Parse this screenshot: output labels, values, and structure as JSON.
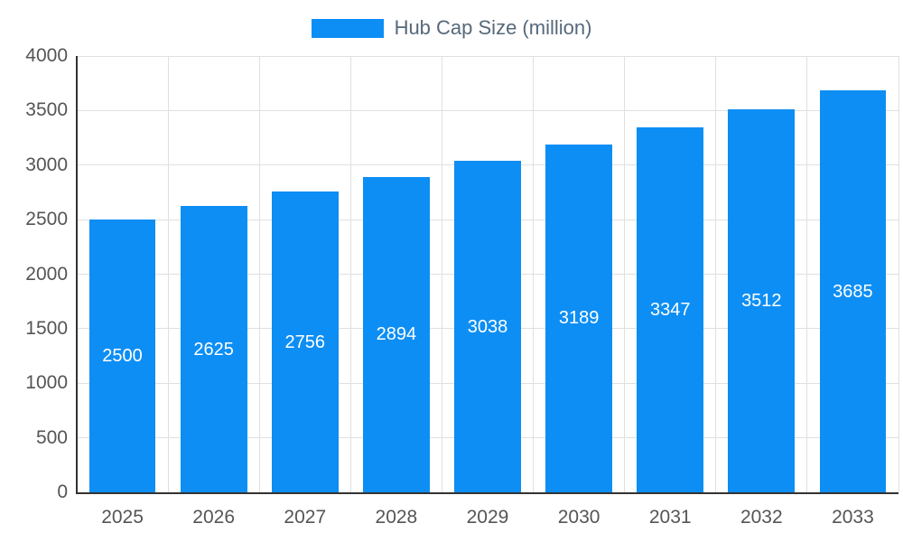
{
  "legend": {
    "label": "Hub Cap Size (million)"
  },
  "chart_data": {
    "type": "bar",
    "title": "Hub Cap Size (million)",
    "categories": [
      "2025",
      "2026",
      "2027",
      "2028",
      "2029",
      "2030",
      "2031",
      "2032",
      "2033"
    ],
    "values": [
      2500,
      2625,
      2756,
      2894,
      3038,
      3189,
      3347,
      3512,
      3685
    ],
    "xlabel": "",
    "ylabel": "",
    "ylim": [
      0,
      4000
    ],
    "yticks": [
      0,
      500,
      1000,
      1500,
      2000,
      2500,
      3000,
      3500,
      4000
    ],
    "legend_position": "top",
    "grid": true
  },
  "colors": {
    "bar": "#0d8ef4",
    "value_label": "#ffffff",
    "axis_text": "#555555",
    "gridline": "#e0e0e0",
    "axis_line": "#333333",
    "legend_text": "#56697a",
    "background": "#ffffff"
  }
}
